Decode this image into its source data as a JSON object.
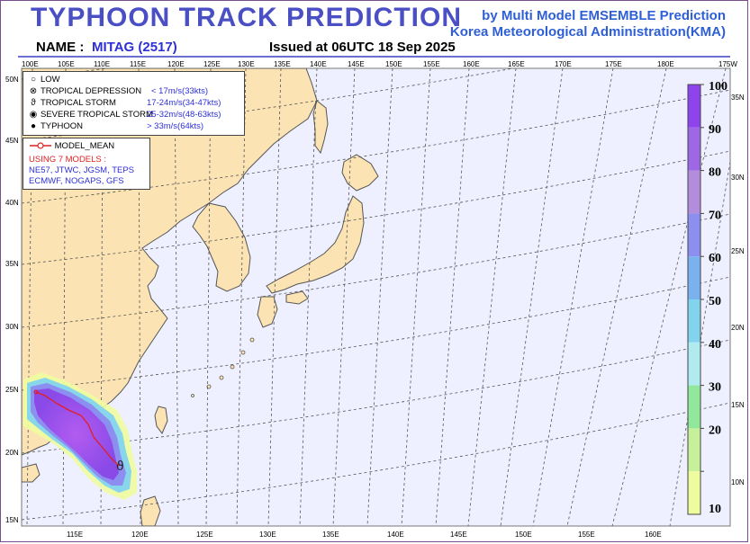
{
  "header": {
    "title": "TYPHOON TRACK PREDICTION",
    "credit_line1": "by Multi Model EMSEMBLE Prediction",
    "credit_line2": "Korea Meteorological Administration(KMA)",
    "name_label": "NAME :",
    "name_value": "MITAG (2517)",
    "issued": "Issued at  06UTC 18 Sep 2025"
  },
  "legend": {
    "categories": [
      {
        "symbol": "○",
        "label": "LOW",
        "value": ""
      },
      {
        "symbol": "⊗",
        "label": "TROPICAL DEPRESSION",
        "value": "< 17m/s(33kts)"
      },
      {
        "symbol": "ϑ",
        "label": "TROPICAL STORM",
        "value": "17-24m/s(34-47kts)"
      },
      {
        "symbol": "◉",
        "label": "SEVERE TROPICAL STORM",
        "value": "25-32m/s(48-63kts)"
      },
      {
        "symbol": "●",
        "label": "TYPHOON",
        "value": "> 33m/s(64kts)"
      }
    ],
    "model_mean_label": "MODEL_MEAN",
    "models_heading": "USING 7 MODELS :",
    "models_line1": "NE57, JTWC, JGSM, TEPS",
    "models_line2": "ECMWF, NOGAPS, GFS"
  },
  "map": {
    "top_lon_labels": [
      "100E",
      "105E",
      "110E",
      "115E",
      "120E",
      "125E",
      "130E",
      "135E",
      "140E",
      "145E",
      "150E",
      "155E",
      "160E",
      "165E",
      "170E",
      "175E",
      "180E",
      "175W"
    ],
    "bottom_lon_labels": [
      "115E",
      "120E",
      "125E",
      "130E",
      "135E",
      "140E",
      "145E",
      "150E",
      "155E",
      "160E"
    ],
    "left_lat_labels": [
      "50N",
      "45N",
      "40N",
      "35N",
      "30N",
      "25N",
      "20N",
      "15N"
    ],
    "right_lat_labels": [
      "35N",
      "30N",
      "25N",
      "20N",
      "15N",
      "10N"
    ],
    "colors": {
      "land": "#fbe3b3",
      "ocean": "#eef0ff",
      "track": "#e02020"
    }
  },
  "colorbar": {
    "labels": [
      "100",
      "90",
      "80",
      "70",
      "60",
      "50",
      "40",
      "30",
      "20",
      "10"
    ],
    "colors": [
      "#8e44ec",
      "#9e67e6",
      "#b38ddc",
      "#8c8ef0",
      "#7ab2f0",
      "#82d4ee",
      "#b0ecef",
      "#92e89a",
      "#c6f09a",
      "#eefc9e"
    ]
  }
}
